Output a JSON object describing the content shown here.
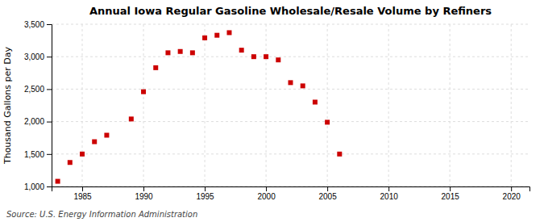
{
  "chart_data": {
    "type": "scatter",
    "title": "Annual Iowa Regular Gasoline Wholesale/Resale Volume by Refiners",
    "ylabel": "Thousand Gallons per Day",
    "annotations": [
      "Source: U.S. Energy Information Administration"
    ],
    "x": [
      1983,
      1984,
      1985,
      1986,
      1987,
      1989,
      1990,
      1991,
      1992,
      1993,
      1994,
      1995,
      1996,
      1997,
      1998,
      1999,
      2000,
      2001,
      2002,
      2003,
      2004,
      2005,
      2006
    ],
    "values": [
      1080,
      1370,
      1500,
      1690,
      1790,
      2040,
      2460,
      2830,
      3060,
      3080,
      3060,
      3290,
      3330,
      3370,
      3100,
      3000,
      3000,
      2950,
      2600,
      2550,
      2300,
      1990,
      1500
    ],
    "color": "#cc0000",
    "marker": "square",
    "grid": true,
    "xlim": [
      1982.5,
      2021.5
    ],
    "ylim": [
      1000,
      3500
    ],
    "xticks": [
      1985,
      1990,
      1995,
      2000,
      2005,
      2010,
      2015,
      2020
    ],
    "yticks": [
      {
        "value": 1000,
        "label": "1,000"
      },
      {
        "value": 1500,
        "label": "1,500"
      },
      {
        "value": 2000,
        "label": "2,000"
      },
      {
        "value": 2500,
        "label": "2,500"
      },
      {
        "value": 3000,
        "label": "3,000"
      },
      {
        "value": 3500,
        "label": "3,500"
      }
    ]
  }
}
